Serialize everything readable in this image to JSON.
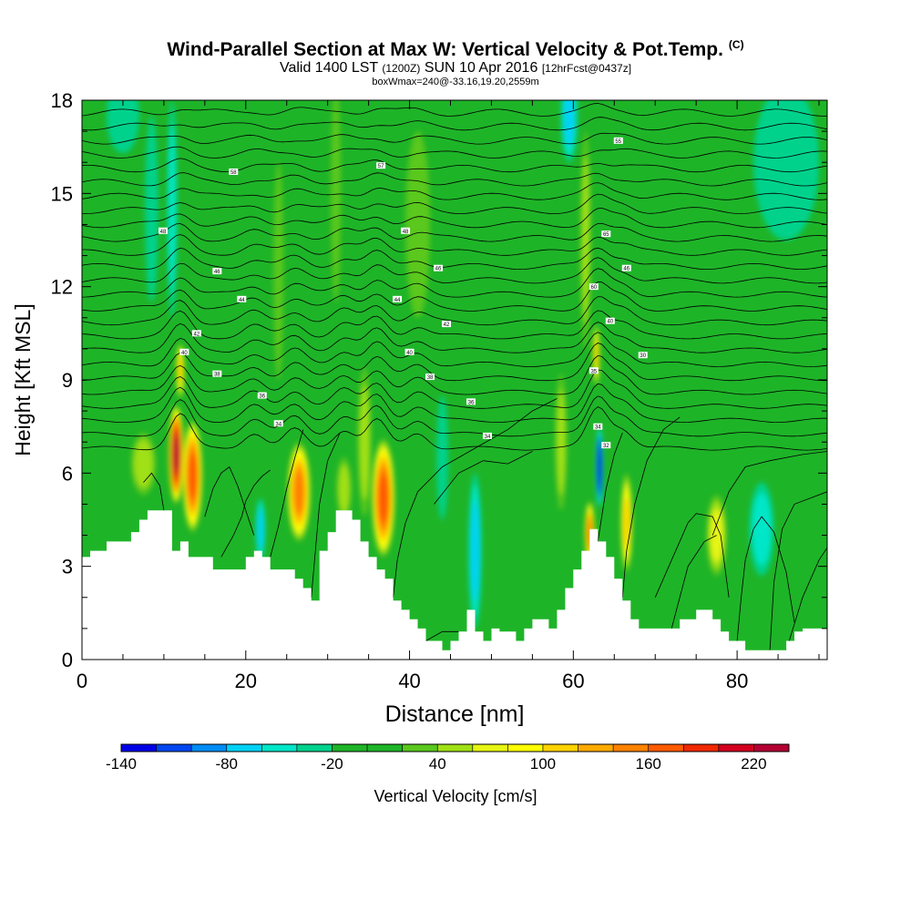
{
  "title": {
    "main": "Wind-Parallel Section at Max W: Vertical Velocity & Pot.Temp.",
    "corner_mark": "(C)",
    "valid_text": "Valid 1400 LST",
    "valid_utc": "(1200Z)",
    "valid_date": "SUN 10 Apr 2016",
    "forecast_tag": "[12hrFcst@0437z]",
    "box_info": "boxWmax=240@-33.16,19.20,2559m"
  },
  "chart_data": {
    "type": "heatmap",
    "xlabel": "Distance [nm]",
    "ylabel": "Height [Kft MSL]",
    "xlim": [
      0,
      91
    ],
    "ylim": [
      0,
      18
    ],
    "xticks": [
      0,
      20,
      40,
      60,
      80
    ],
    "yticks": [
      0,
      3,
      6,
      9,
      12,
      15,
      18
    ],
    "terrain": [
      [
        0,
        3.3
      ],
      [
        1,
        3.3
      ],
      [
        1,
        3.5
      ],
      [
        3,
        3.5
      ],
      [
        3,
        3.8
      ],
      [
        6,
        3.8
      ],
      [
        6,
        4.1
      ],
      [
        7,
        4.1
      ],
      [
        7,
        4.5
      ],
      [
        8,
        4.5
      ],
      [
        8,
        4.8
      ],
      [
        11,
        4.8
      ],
      [
        11,
        3.5
      ],
      [
        12,
        3.5
      ],
      [
        12,
        3.8
      ],
      [
        13,
        3.8
      ],
      [
        13,
        3.3
      ],
      [
        16,
        3.3
      ],
      [
        16,
        2.9
      ],
      [
        18,
        2.9
      ],
      [
        18,
        2.9
      ],
      [
        20,
        2.9
      ],
      [
        20,
        3.3
      ],
      [
        21,
        3.3
      ],
      [
        21,
        3.5
      ],
      [
        22,
        3.5
      ],
      [
        22,
        3.3
      ],
      [
        23,
        3.3
      ],
      [
        23,
        2.9
      ],
      [
        26,
        2.9
      ],
      [
        26,
        2.6
      ],
      [
        27,
        2.6
      ],
      [
        27,
        2.3
      ],
      [
        28,
        2.3
      ],
      [
        28,
        1.9
      ],
      [
        29,
        1.9
      ],
      [
        29,
        3.5
      ],
      [
        30,
        3.5
      ],
      [
        30,
        4.1
      ],
      [
        31,
        4.1
      ],
      [
        31,
        4.8
      ],
      [
        33,
        4.8
      ],
      [
        33,
        4.5
      ],
      [
        34,
        4.5
      ],
      [
        34,
        3.8
      ],
      [
        35,
        3.8
      ],
      [
        35,
        3.3
      ],
      [
        36,
        3.3
      ],
      [
        36,
        2.9
      ],
      [
        37,
        2.9
      ],
      [
        37,
        2.6
      ],
      [
        38,
        2.6
      ],
      [
        38,
        1.9
      ],
      [
        39,
        1.9
      ],
      [
        39,
        1.6
      ],
      [
        40,
        1.6
      ],
      [
        40,
        1.3
      ],
      [
        41,
        1.3
      ],
      [
        41,
        1.0
      ],
      [
        42,
        1.0
      ],
      [
        42,
        0.6
      ],
      [
        43,
        0.6
      ],
      [
        43,
        0.6
      ],
      [
        44,
        0.6
      ],
      [
        44,
        0.3
      ],
      [
        45,
        0.3
      ],
      [
        45,
        0.6
      ],
      [
        46,
        0.6
      ],
      [
        46,
        0.9
      ],
      [
        47,
        0.9
      ],
      [
        47,
        1.6
      ],
      [
        48,
        1.6
      ],
      [
        48,
        0.9
      ],
      [
        49,
        0.9
      ],
      [
        49,
        0.6
      ],
      [
        50,
        0.6
      ],
      [
        50,
        1.0
      ],
      [
        51,
        1.0
      ],
      [
        51,
        0.9
      ],
      [
        53,
        0.9
      ],
      [
        53,
        0.6
      ],
      [
        54,
        0.6
      ],
      [
        54,
        1.0
      ],
      [
        55,
        1.0
      ],
      [
        55,
        1.3
      ],
      [
        57,
        1.3
      ],
      [
        57,
        1.0
      ],
      [
        58,
        1.0
      ],
      [
        58,
        1.6
      ],
      [
        59,
        1.6
      ],
      [
        59,
        2.3
      ],
      [
        60,
        2.3
      ],
      [
        60,
        2.9
      ],
      [
        61,
        2.9
      ],
      [
        61,
        3.5
      ],
      [
        62,
        3.5
      ],
      [
        62,
        4.2
      ],
      [
        63,
        4.2
      ],
      [
        63,
        3.8
      ],
      [
        64,
        3.8
      ],
      [
        64,
        3.3
      ],
      [
        65,
        3.3
      ],
      [
        65,
        2.6
      ],
      [
        66,
        2.6
      ],
      [
        66,
        1.9
      ],
      [
        67,
        1.9
      ],
      [
        67,
        1.3
      ],
      [
        68,
        1.3
      ],
      [
        68,
        1.0
      ],
      [
        73,
        1.0
      ],
      [
        73,
        1.3
      ],
      [
        74,
        1.3
      ],
      [
        74,
        1.3
      ],
      [
        75,
        1.3
      ],
      [
        75,
        1.6
      ],
      [
        77,
        1.6
      ],
      [
        77,
        1.3
      ],
      [
        78,
        1.3
      ],
      [
        78,
        0.9
      ],
      [
        79,
        0.9
      ],
      [
        79,
        0.6
      ],
      [
        80,
        0.6
      ],
      [
        80,
        0.6
      ],
      [
        81,
        0.6
      ],
      [
        81,
        0.3
      ],
      [
        86,
        0.3
      ],
      [
        86,
        0.6
      ],
      [
        87,
        0.6
      ],
      [
        87,
        0.9
      ],
      [
        88,
        0.9
      ],
      [
        88,
        1.0
      ],
      [
        91,
        1.0
      ]
    ],
    "vertical_velocity_cells": [
      {
        "x": 11.5,
        "z": 6.6,
        "sx": 0.9,
        "sz": 1.6,
        "w": 230
      },
      {
        "x": 13.5,
        "z": 5.9,
        "sx": 1.2,
        "sz": 1.8,
        "w": 170
      },
      {
        "x": 12.0,
        "z": 9.3,
        "sx": 0.5,
        "sz": 0.9,
        "w": 110
      },
      {
        "x": 26.5,
        "z": 5.4,
        "sx": 1.4,
        "sz": 1.6,
        "w": 150
      },
      {
        "x": 36.8,
        "z": 5.2,
        "sx": 1.4,
        "sz": 1.9,
        "w": 160
      },
      {
        "x": 62.0,
        "z": 4.1,
        "sx": 0.6,
        "sz": 1.0,
        "w": 140
      },
      {
        "x": 62.8,
        "z": 9.8,
        "sx": 0.4,
        "sz": 1.0,
        "w": 110
      },
      {
        "x": 66.5,
        "z": 4.4,
        "sx": 0.7,
        "sz": 1.6,
        "w": 105
      },
      {
        "x": 7.5,
        "z": 6.3,
        "sx": 1.5,
        "sz": 1.0,
        "w": 50
      },
      {
        "x": 32.0,
        "z": 5.5,
        "sx": 0.9,
        "sz": 1.0,
        "w": 55
      },
      {
        "x": 34.5,
        "z": 7.0,
        "sx": 0.8,
        "sz": 2.4,
        "w": 55
      },
      {
        "x": 58.5,
        "z": 7.0,
        "sx": 0.7,
        "sz": 2.2,
        "w": 50
      },
      {
        "x": 77.5,
        "z": 4.0,
        "sx": 1.2,
        "sz": 1.3,
        "w": 75
      },
      {
        "x": 61.5,
        "z": 13.5,
        "sx": 0.6,
        "sz": 3.5,
        "w": 40
      },
      {
        "x": 41.0,
        "z": 14.0,
        "sx": 1.5,
        "sz": 3.0,
        "w": 30
      },
      {
        "x": 31.0,
        "z": 15.0,
        "sx": 0.6,
        "sz": 3.5,
        "w": 35
      },
      {
        "x": 24.0,
        "z": 12.5,
        "sx": 0.6,
        "sz": 3.5,
        "w": 30
      },
      {
        "x": 63.2,
        "z": 6.2,
        "sx": 0.45,
        "sz": 1.3,
        "w": -145
      },
      {
        "x": 11.0,
        "z": 14.5,
        "sx": 0.6,
        "sz": 3.5,
        "w": -40
      },
      {
        "x": 21.8,
        "z": 4.2,
        "sx": 0.6,
        "sz": 1.0,
        "w": -60
      },
      {
        "x": 48.0,
        "z": 3.5,
        "sx": 0.8,
        "sz": 2.5,
        "w": -70
      },
      {
        "x": 59.5,
        "z": 17.5,
        "sx": 1.0,
        "sz": 1.5,
        "w": -60
      },
      {
        "x": 86.0,
        "z": 16.0,
        "sx": 4.0,
        "sz": 2.5,
        "w": -30
      },
      {
        "x": 8.5,
        "z": 14.5,
        "sx": 0.8,
        "sz": 3.0,
        "w": -30
      },
      {
        "x": 83.0,
        "z": 4.2,
        "sx": 1.5,
        "sz": 1.5,
        "w": -40
      },
      {
        "x": 5.0,
        "z": 17.5,
        "sx": 2.0,
        "sz": 1.2,
        "w": -30
      },
      {
        "x": 44.0,
        "z": 6.5,
        "sx": 0.7,
        "sz": 2.0,
        "w": -30
      }
    ],
    "theta_contours": {
      "levels": 25,
      "bottom_height": 6.8,
      "top_height": 17.5,
      "spacing": 0.45,
      "labels": [
        {
          "text": "58",
          "x": 18.5,
          "z": 15.7
        },
        {
          "text": "57",
          "x": 36.5,
          "z": 15.9
        },
        {
          "text": "55",
          "x": 65.5,
          "z": 16.7
        },
        {
          "text": "48",
          "x": 9.9,
          "z": 13.8
        },
        {
          "text": "48",
          "x": 39.5,
          "z": 13.8
        },
        {
          "text": "65",
          "x": 64.0,
          "z": 13.7
        },
        {
          "text": "46",
          "x": 16.5,
          "z": 12.5
        },
        {
          "text": "46",
          "x": 43.5,
          "z": 12.6
        },
        {
          "text": "46",
          "x": 66.5,
          "z": 12.6
        },
        {
          "text": "44",
          "x": 19.5,
          "z": 11.6
        },
        {
          "text": "44",
          "x": 38.5,
          "z": 11.6
        },
        {
          "text": "60",
          "x": 62.5,
          "z": 12.0
        },
        {
          "text": "42",
          "x": 14.0,
          "z": 10.5
        },
        {
          "text": "42",
          "x": 44.5,
          "z": 10.8
        },
        {
          "text": "40",
          "x": 12.5,
          "z": 9.9
        },
        {
          "text": "40",
          "x": 40.0,
          "z": 9.9
        },
        {
          "text": "40",
          "x": 64.5,
          "z": 10.9
        },
        {
          "text": "38",
          "x": 16.5,
          "z": 9.2
        },
        {
          "text": "38",
          "x": 42.5,
          "z": 9.1
        },
        {
          "text": "30",
          "x": 68.5,
          "z": 9.8
        },
        {
          "text": "36",
          "x": 22.0,
          "z": 8.5
        },
        {
          "text": "36",
          "x": 47.5,
          "z": 8.3
        },
        {
          "text": "35",
          "x": 62.5,
          "z": 9.3
        },
        {
          "text": "34",
          "x": 24.0,
          "z": 7.6
        },
        {
          "text": "34",
          "x": 49.5,
          "z": 7.2
        },
        {
          "text": "34",
          "x": 63.0,
          "z": 7.5
        },
        {
          "text": "32",
          "x": 64.0,
          "z": 6.9
        }
      ]
    },
    "colorbar": {
      "label": "Vertical Velocity [cm/s]",
      "boundaries": [
        -140,
        -120,
        -100,
        -80,
        -60,
        -40,
        -20,
        0,
        20,
        40,
        60,
        80,
        100,
        120,
        140,
        160,
        180,
        200,
        220,
        240
      ],
      "tick_labels": [
        "-140",
        "-80",
        "-20",
        "40",
        "100",
        "160",
        "220"
      ],
      "colors": [
        "#0000e6",
        "#0046f0",
        "#008cf5",
        "#00d2f5",
        "#00e6c8",
        "#00d28c",
        "#1eb428",
        "#1eb428",
        "#5ac81e",
        "#a0e014",
        "#e6f514",
        "#ffff00",
        "#ffd200",
        "#ffaa00",
        "#ff8200",
        "#ff5a00",
        "#f02800",
        "#d2001e",
        "#b40032"
      ]
    }
  }
}
